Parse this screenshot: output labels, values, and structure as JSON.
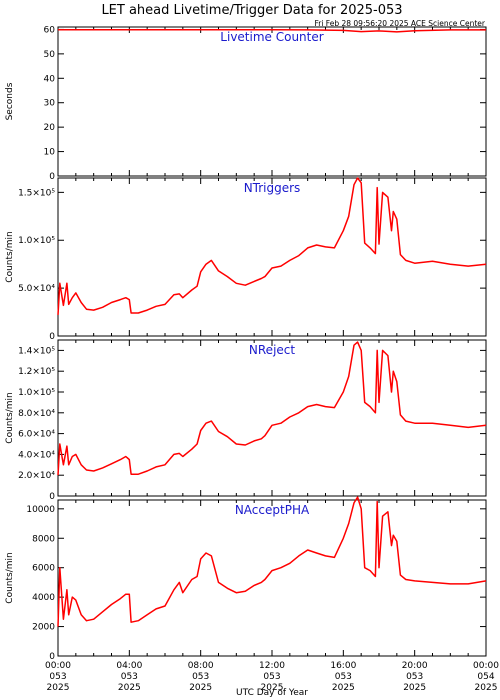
{
  "title": "LET ahead Livetime/Trigger Data for 2025-053",
  "timestamp": "Fri Feb 28 09:56:20 2025 ACE Science Center",
  "colors": {
    "trace": "#ff0000",
    "panel_label": "#1a1acc",
    "axes": "#000000"
  },
  "chart_data": [
    {
      "type": "line",
      "panel_label": "Livetime Counter",
      "ylabel": "Seconds",
      "ylim": [
        0,
        61
      ],
      "yticks": [
        {
          "value": 0,
          "label": "0"
        },
        {
          "value": 10,
          "label": "10"
        },
        {
          "value": 20,
          "label": "20"
        },
        {
          "value": 30,
          "label": "30"
        },
        {
          "value": 40,
          "label": "40"
        },
        {
          "value": 50,
          "label": "50"
        },
        {
          "value": 60,
          "label": "60"
        }
      ],
      "x": [
        0,
        2,
        4,
        6,
        8,
        10,
        12,
        14,
        16,
        17,
        18,
        19,
        20,
        22,
        24
      ],
      "y": [
        59.9,
        59.9,
        59.9,
        59.9,
        59.9,
        59.9,
        59.9,
        59.8,
        59.6,
        59.1,
        59.4,
        59.0,
        59.5,
        59.8,
        59.8
      ]
    },
    {
      "type": "line",
      "panel_label": "NTriggers",
      "ylabel": "Counts/min",
      "ylim": [
        0,
        165000
      ],
      "yticks": [
        {
          "value": 0,
          "label": "0"
        },
        {
          "value": 50000,
          "label": "5.0×10⁴"
        },
        {
          "value": 100000,
          "label": "1.0×10⁵"
        },
        {
          "value": 150000,
          "label": "1.5×10⁵"
        }
      ],
      "x": [
        0,
        0.1,
        0.3,
        0.5,
        0.6,
        0.8,
        1.0,
        1.3,
        1.6,
        2.0,
        2.5,
        3.0,
        3.5,
        3.8,
        4.0,
        4.1,
        4.5,
        5.0,
        5.5,
        6.0,
        6.5,
        6.8,
        7.0,
        7.5,
        7.8,
        8.0,
        8.3,
        8.6,
        9.0,
        9.5,
        10.0,
        10.5,
        11.0,
        11.4,
        11.6,
        12.0,
        12.5,
        13.0,
        13.5,
        14.0,
        14.5,
        15.0,
        15.5,
        16.0,
        16.3,
        16.6,
        16.8,
        17.0,
        17.2,
        17.5,
        17.8,
        17.9,
        18.0,
        18.2,
        18.5,
        18.7,
        18.8,
        19.0,
        19.2,
        19.5,
        20.0,
        21.0,
        22.0,
        23.0,
        24.0
      ],
      "y": [
        22000,
        55000,
        32000,
        55000,
        33000,
        40000,
        45000,
        35000,
        28000,
        27000,
        30000,
        35000,
        38000,
        40000,
        38000,
        24000,
        24000,
        27000,
        31000,
        33000,
        43000,
        44000,
        40000,
        48000,
        52000,
        67000,
        75000,
        79000,
        68000,
        62000,
        55000,
        53000,
        57000,
        60000,
        62000,
        71000,
        73000,
        79000,
        84000,
        92000,
        95000,
        93000,
        92000,
        110000,
        125000,
        158000,
        165000,
        160000,
        97000,
        92000,
        86000,
        155000,
        96000,
        150000,
        145000,
        110000,
        130000,
        122000,
        85000,
        79000,
        76000,
        78000,
        75000,
        73000,
        75000
      ]
    },
    {
      "type": "line",
      "panel_label": "NReject",
      "ylabel": "Counts/min",
      "ylim": [
        0,
        150000
      ],
      "yticks": [
        {
          "value": 0,
          "label": "0"
        },
        {
          "value": 20000,
          "label": "2.0×10⁴"
        },
        {
          "value": 40000,
          "label": "4.0×10⁴"
        },
        {
          "value": 60000,
          "label": "6.0×10⁴"
        },
        {
          "value": 80000,
          "label": "8.0×10⁴"
        },
        {
          "value": 100000,
          "label": "1.0×10⁵"
        },
        {
          "value": 120000,
          "label": "1.2×10⁵"
        },
        {
          "value": 140000,
          "label": "1.4×10⁵"
        }
      ],
      "x": [
        0,
        0.1,
        0.3,
        0.5,
        0.6,
        0.8,
        1.0,
        1.3,
        1.6,
        2.0,
        2.5,
        3.0,
        3.5,
        3.8,
        4.0,
        4.1,
        4.5,
        5.0,
        5.5,
        6.0,
        6.5,
        6.8,
        7.0,
        7.5,
        7.8,
        8.0,
        8.3,
        8.6,
        9.0,
        9.5,
        10.0,
        10.5,
        11.0,
        11.4,
        11.6,
        12.0,
        12.5,
        13.0,
        13.5,
        14.0,
        14.5,
        15.0,
        15.5,
        16.0,
        16.3,
        16.6,
        16.8,
        17.0,
        17.2,
        17.5,
        17.8,
        17.9,
        18.0,
        18.2,
        18.5,
        18.7,
        18.8,
        19.0,
        19.2,
        19.5,
        20.0,
        21.0,
        22.0,
        23.0,
        24.0
      ],
      "y": [
        20000,
        50000,
        30000,
        48000,
        30000,
        38000,
        40000,
        30000,
        25000,
        24000,
        27000,
        31000,
        35000,
        38000,
        35000,
        21000,
        21000,
        24000,
        28000,
        30000,
        40000,
        41000,
        38000,
        45000,
        50000,
        63000,
        70000,
        72000,
        62000,
        57000,
        50000,
        49000,
        53000,
        55000,
        58000,
        68000,
        70000,
        76000,
        80000,
        86000,
        88000,
        86000,
        85000,
        100000,
        115000,
        145000,
        148000,
        140000,
        90000,
        86000,
        80000,
        140000,
        90000,
        140000,
        135000,
        100000,
        120000,
        110000,
        78000,
        72000,
        70000,
        70000,
        68000,
        66000,
        68000
      ]
    },
    {
      "type": "line",
      "panel_label": "NAcceptPHA",
      "ylabel": "Counts/min",
      "ylim": [
        0,
        10600
      ],
      "yticks": [
        {
          "value": 0,
          "label": "0"
        },
        {
          "value": 2000,
          "label": "2000"
        },
        {
          "value": 4000,
          "label": "4000"
        },
        {
          "value": 6000,
          "label": "6000"
        },
        {
          "value": 8000,
          "label": "8000"
        },
        {
          "value": 10000,
          "label": "10000"
        }
      ],
      "x": [
        0,
        0.1,
        0.3,
        0.5,
        0.6,
        0.8,
        1.0,
        1.3,
        1.6,
        2.0,
        2.5,
        3.0,
        3.5,
        3.8,
        4.0,
        4.1,
        4.5,
        5.0,
        5.5,
        6.0,
        6.5,
        6.8,
        7.0,
        7.5,
        7.8,
        8.0,
        8.3,
        8.6,
        9.0,
        9.5,
        10.0,
        10.5,
        11.0,
        11.4,
        11.6,
        12.0,
        12.5,
        13.0,
        13.5,
        14.0,
        14.5,
        15.0,
        15.5,
        16.0,
        16.3,
        16.6,
        16.8,
        17.0,
        17.2,
        17.5,
        17.8,
        17.9,
        18.0,
        18.2,
        18.5,
        18.7,
        18.8,
        19.0,
        19.2,
        19.5,
        20.0,
        21.0,
        22.0,
        23.0,
        24.0
      ],
      "y": [
        2000,
        6000,
        2500,
        4500,
        2800,
        4000,
        3800,
        2800,
        2400,
        2500,
        3000,
        3500,
        3900,
        4200,
        4200,
        2300,
        2400,
        2800,
        3200,
        3400,
        4500,
        5000,
        4300,
        5200,
        5400,
        6600,
        7000,
        6800,
        5000,
        4600,
        4300,
        4400,
        4800,
        5000,
        5200,
        5800,
        6000,
        6300,
        6800,
        7200,
        7000,
        6800,
        6700,
        8000,
        9000,
        10400,
        10800,
        10000,
        6000,
        5800,
        5400,
        10500,
        6000,
        9500,
        9800,
        7500,
        8200,
        7800,
        5500,
        5200,
        5100,
        5000,
        4900,
        4900,
        5100
      ]
    }
  ],
  "x_axis": {
    "xlabel": "UTC Day of Year",
    "xlim": [
      0,
      24
    ],
    "ticks": [
      {
        "value": 0,
        "time": "00:00",
        "doy": "053",
        "year": "2025"
      },
      {
        "value": 4,
        "time": "04:00",
        "doy": "053",
        "year": "2025"
      },
      {
        "value": 8,
        "time": "08:00",
        "doy": "053",
        "year": "2025"
      },
      {
        "value": 12,
        "time": "12:00",
        "doy": "053",
        "year": "2025"
      },
      {
        "value": 16,
        "time": "16:00",
        "doy": "053",
        "year": "2025"
      },
      {
        "value": 20,
        "time": "20:00",
        "doy": "053",
        "year": "2025"
      },
      {
        "value": 24,
        "time": "00:00",
        "doy": "054",
        "year": "2025"
      }
    ]
  }
}
